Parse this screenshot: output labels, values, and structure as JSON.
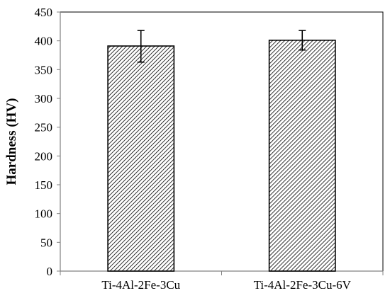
{
  "chart_data": {
    "type": "bar",
    "categories": [
      "Ti-4Al-2Fe-3Cu",
      "Ti-4Al-2Fe-3Cu-6V"
    ],
    "values": [
      391,
      401
    ],
    "error_bars": [
      {
        "lower": 363,
        "upper": 418
      },
      {
        "lower": 384,
        "upper": 418
      }
    ],
    "title": "",
    "xlabel": "",
    "ylabel": "Hardness (HV)",
    "ylim": [
      0,
      450
    ],
    "yticks": [
      0,
      50,
      100,
      150,
      200,
      250,
      300,
      350,
      400,
      450
    ],
    "grid": false,
    "legend": "none",
    "bar_fill": "diagonal-hatch",
    "colors": {
      "bar_stroke": "#000000",
      "hatch": "#000000",
      "axis": "#808080",
      "plot_border": "#000000"
    }
  }
}
